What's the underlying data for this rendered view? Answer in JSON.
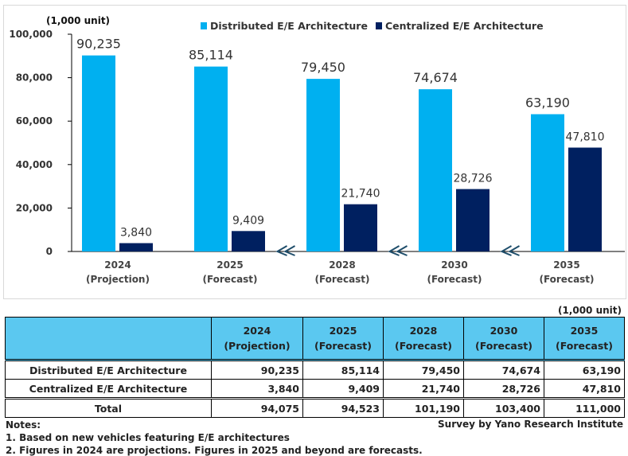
{
  "chart_data": {
    "type": "bar",
    "unit_label": "(1,000 unit)",
    "categories": [
      [
        "2024",
        "(Projection)"
      ],
      [
        "2025",
        "(Forecast)"
      ],
      [
        "2028",
        "(Forecast)"
      ],
      [
        "2030",
        "(Forecast)"
      ],
      [
        "2035",
        "(Forecast)"
      ]
    ],
    "series": [
      {
        "name": "Distributed E/E Architecture",
        "color": "#00b0f0",
        "values": [
          90235,
          85114,
          79450,
          74674,
          63190
        ],
        "labels": [
          "90,235",
          "85,114",
          "79,450",
          "74,674",
          "63,190"
        ]
      },
      {
        "name": "Centralized E/E Architecture",
        "color": "#002060",
        "values": [
          3840,
          9409,
          21740,
          28726,
          47810
        ],
        "labels": [
          "3,840",
          "9,409",
          "21,740",
          "28,726",
          "47,810"
        ]
      }
    ],
    "ylim": [
      0,
      100000
    ],
    "yticks": [
      "0",
      "20,000",
      "40,000",
      "60,000",
      "80,000",
      "100,000"
    ],
    "axis_breaks": true,
    "legend": "top",
    "grid": false
  },
  "table": {
    "unit_label": "(1,000 unit)",
    "rows": [
      {
        "label": "Distributed E/E Architecture",
        "values": [
          "90,235",
          "85,114",
          "79,450",
          "74,674",
          "63,190"
        ]
      },
      {
        "label": "Centralized E/E Architecture",
        "values": [
          "3,840",
          "9,409",
          "21,740",
          "28,726",
          "47,810"
        ]
      },
      {
        "label": "Total",
        "values": [
          "94,075",
          "94,523",
          "101,190",
          "103,400",
          "111,000"
        ]
      }
    ]
  },
  "notes": {
    "title": "Notes:",
    "items": [
      "1. Based on new vehicles featuring E/E architectures",
      "2. Figures in 2024 are projections. Figures in 2025 and beyond are forecasts."
    ]
  },
  "source": "Survey by Yano Research Institute"
}
